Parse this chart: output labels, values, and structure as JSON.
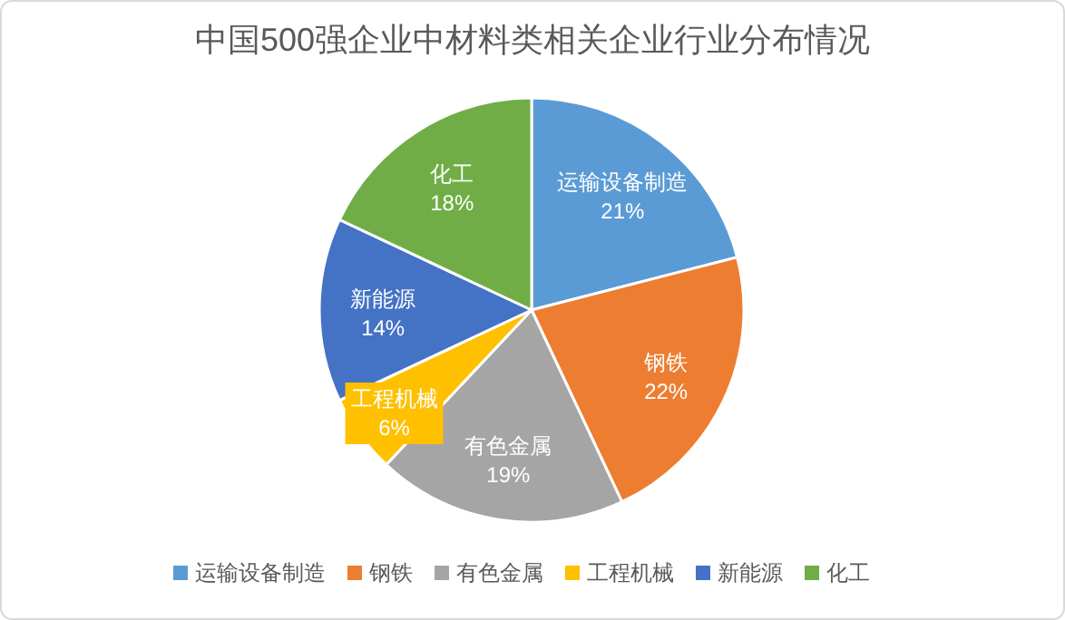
{
  "chart_data": {
    "type": "pie",
    "title": "中国500强企业中材料类相关企业行业分布情况",
    "categories": [
      "运输设备制造",
      "钢铁",
      "有色金属",
      "工程机械",
      "新能源",
      "化工"
    ],
    "values": [
      21,
      22,
      19,
      6,
      14,
      18
    ],
    "value_labels": [
      "21%",
      "22%",
      "19%",
      "6%",
      "14%",
      "18%"
    ],
    "colors": [
      "#5b9bd5",
      "#ed7d31",
      "#a5a5a5",
      "#ffc000",
      "#4472c4",
      "#70ad47"
    ],
    "legend": "bottom"
  }
}
